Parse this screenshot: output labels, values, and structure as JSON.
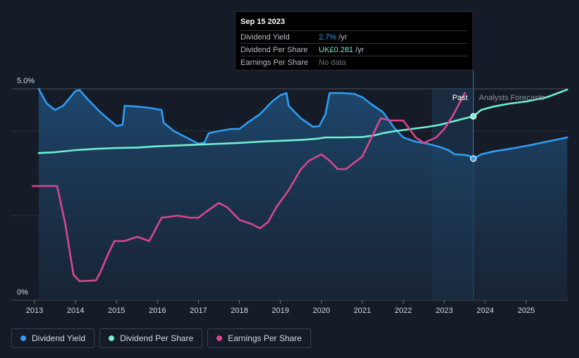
{
  "tooltip": {
    "date": "Sep 15 2023",
    "rows": [
      {
        "label": "Dividend Yield",
        "value": "2.7%",
        "unit": "/yr"
      },
      {
        "label": "Dividend Per Share",
        "value": "UK£0.281",
        "unit": "/yr"
      },
      {
        "label": "Earnings Per Share",
        "value": "No data",
        "unit": ""
      }
    ]
  },
  "legend": [
    {
      "label": "Dividend Yield",
      "color": "#2e9df2"
    },
    {
      "label": "Dividend Per Share",
      "color": "#6ff0d2"
    },
    {
      "label": "Earnings Per Share",
      "color": "#d8478c"
    }
  ],
  "chart_data": {
    "type": "line",
    "y_top_label": "5.0%",
    "y_bottom_label": "0%",
    "x_ticks": [
      "2013",
      "2014",
      "2015",
      "2016",
      "2017",
      "2018",
      "2019",
      "2020",
      "2021",
      "2022",
      "2023",
      "2024",
      "2025"
    ],
    "xlim": [
      2012.9,
      2026.0
    ],
    "ylim": [
      0,
      5.0
    ],
    "past_label": "Past",
    "forecast_label": "Analysts Forecasts",
    "past_region": [
      2022.7,
      2023.71
    ],
    "grid": true,
    "legend_position": "bottom-left",
    "series": [
      {
        "name": "Dividend Yield",
        "color": "#2e9df2",
        "filled": true,
        "points": [
          [
            2013.1,
            5.0
          ],
          [
            2013.3,
            4.65
          ],
          [
            2013.5,
            4.5
          ],
          [
            2013.7,
            4.6
          ],
          [
            2014.0,
            4.95
          ],
          [
            2014.1,
            4.97
          ],
          [
            2014.3,
            4.75
          ],
          [
            2014.6,
            4.45
          ],
          [
            2014.9,
            4.2
          ],
          [
            2015.0,
            4.12
          ],
          [
            2015.15,
            4.15
          ],
          [
            2015.2,
            4.6
          ],
          [
            2015.5,
            4.58
          ],
          [
            2015.8,
            4.55
          ],
          [
            2016.1,
            4.5
          ],
          [
            2016.15,
            4.2
          ],
          [
            2016.4,
            4.0
          ],
          [
            2016.7,
            3.85
          ],
          [
            2017.0,
            3.7
          ],
          [
            2017.15,
            3.73
          ],
          [
            2017.25,
            3.95
          ],
          [
            2017.5,
            4.0
          ],
          [
            2017.8,
            4.05
          ],
          [
            2018.0,
            4.05
          ],
          [
            2018.2,
            4.2
          ],
          [
            2018.5,
            4.4
          ],
          [
            2018.8,
            4.7
          ],
          [
            2019.0,
            4.85
          ],
          [
            2019.15,
            4.9
          ],
          [
            2019.2,
            4.6
          ],
          [
            2019.5,
            4.3
          ],
          [
            2019.8,
            4.1
          ],
          [
            2019.95,
            4.12
          ],
          [
            2020.1,
            4.4
          ],
          [
            2020.2,
            4.9
          ],
          [
            2020.5,
            4.9
          ],
          [
            2020.8,
            4.88
          ],
          [
            2021.0,
            4.8
          ],
          [
            2021.2,
            4.65
          ],
          [
            2021.5,
            4.45
          ],
          [
            2021.8,
            4.05
          ],
          [
            2022.0,
            3.85
          ],
          [
            2022.3,
            3.75
          ],
          [
            2022.6,
            3.7
          ],
          [
            2022.9,
            3.62
          ],
          [
            2023.1,
            3.55
          ],
          [
            2023.25,
            3.45
          ],
          [
            2023.45,
            3.44
          ],
          [
            2023.6,
            3.42
          ],
          [
            2023.71,
            3.35
          ],
          [
            2023.9,
            3.45
          ],
          [
            2024.2,
            3.52
          ],
          [
            2024.6,
            3.58
          ],
          [
            2025.0,
            3.65
          ],
          [
            2025.5,
            3.75
          ],
          [
            2026.0,
            3.85
          ]
        ]
      },
      {
        "name": "Dividend Per Share",
        "color": "#6ff0d2",
        "filled": false,
        "points": [
          [
            2013.1,
            3.48
          ],
          [
            2013.5,
            3.5
          ],
          [
            2014.0,
            3.55
          ],
          [
            2014.5,
            3.58
          ],
          [
            2015.0,
            3.6
          ],
          [
            2015.5,
            3.61
          ],
          [
            2016.0,
            3.64
          ],
          [
            2016.5,
            3.66
          ],
          [
            2017.0,
            3.68
          ],
          [
            2017.5,
            3.7
          ],
          [
            2018.0,
            3.72
          ],
          [
            2018.5,
            3.75
          ],
          [
            2019.0,
            3.77
          ],
          [
            2019.5,
            3.79
          ],
          [
            2019.9,
            3.82
          ],
          [
            2020.1,
            3.85
          ],
          [
            2020.5,
            3.85
          ],
          [
            2021.0,
            3.86
          ],
          [
            2021.3,
            3.9
          ],
          [
            2021.5,
            3.95
          ],
          [
            2021.8,
            4.0
          ],
          [
            2022.2,
            4.05
          ],
          [
            2022.6,
            4.1
          ],
          [
            2022.9,
            4.15
          ],
          [
            2023.1,
            4.2
          ],
          [
            2023.3,
            4.25
          ],
          [
            2023.5,
            4.3
          ],
          [
            2023.71,
            4.35
          ],
          [
            2023.9,
            4.5
          ],
          [
            2024.2,
            4.58
          ],
          [
            2024.6,
            4.65
          ],
          [
            2025.0,
            4.7
          ],
          [
            2025.5,
            4.8
          ],
          [
            2026.0,
            4.98
          ]
        ]
      },
      {
        "name": "Earnings Per Share",
        "color": "#d8478c",
        "filled": false,
        "points": [
          [
            2012.95,
            2.7
          ],
          [
            2013.45,
            2.7
          ],
          [
            2013.55,
            2.7
          ],
          [
            2013.75,
            1.8
          ],
          [
            2013.95,
            0.6
          ],
          [
            2014.1,
            0.45
          ],
          [
            2014.3,
            0.46
          ],
          [
            2014.5,
            0.47
          ],
          [
            2014.6,
            0.65
          ],
          [
            2014.8,
            1.1
          ],
          [
            2014.95,
            1.4
          ],
          [
            2015.2,
            1.4
          ],
          [
            2015.5,
            1.5
          ],
          [
            2015.8,
            1.4
          ],
          [
            2016.1,
            1.95
          ],
          [
            2016.5,
            2.0
          ],
          [
            2016.8,
            1.95
          ],
          [
            2017.0,
            1.95
          ],
          [
            2017.2,
            2.1
          ],
          [
            2017.5,
            2.3
          ],
          [
            2017.7,
            2.2
          ],
          [
            2018.0,
            1.9
          ],
          [
            2018.3,
            1.8
          ],
          [
            2018.5,
            1.7
          ],
          [
            2018.7,
            1.85
          ],
          [
            2018.9,
            2.2
          ],
          [
            2019.2,
            2.6
          ],
          [
            2019.5,
            3.1
          ],
          [
            2019.7,
            3.3
          ],
          [
            2019.9,
            3.4
          ],
          [
            2020.0,
            3.45
          ],
          [
            2020.2,
            3.3
          ],
          [
            2020.4,
            3.1
          ],
          [
            2020.6,
            3.1
          ],
          [
            2020.8,
            3.25
          ],
          [
            2021.0,
            3.4
          ],
          [
            2021.2,
            3.8
          ],
          [
            2021.45,
            4.3
          ],
          [
            2021.7,
            4.25
          ],
          [
            2022.0,
            4.25
          ],
          [
            2022.3,
            3.85
          ],
          [
            2022.5,
            3.72
          ],
          [
            2022.8,
            3.85
          ],
          [
            2023.0,
            4.05
          ],
          [
            2023.2,
            4.35
          ],
          [
            2023.35,
            4.62
          ],
          [
            2023.5,
            4.9
          ]
        ]
      }
    ],
    "markers": [
      {
        "series": "Dividend Yield",
        "x": 2023.71,
        "y": 3.35
      },
      {
        "series": "Dividend Per Share",
        "x": 2023.71,
        "y": 4.35
      }
    ]
  }
}
